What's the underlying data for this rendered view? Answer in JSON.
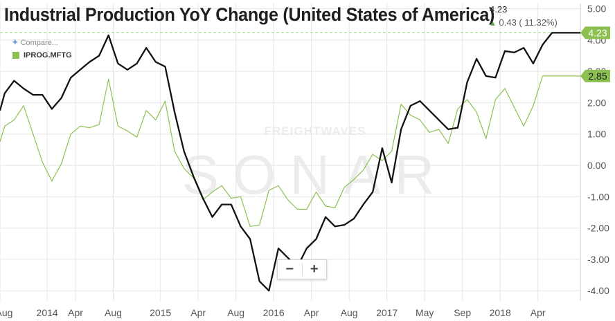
{
  "header": {
    "title": "Industrial Production YoY Change (United States of America)",
    "last_value": "4.23",
    "change": "0.43 ( 11.32%)"
  },
  "compare_label": "Compare...",
  "legend_label": "IPROG.MFTG",
  "watermark": {
    "brand": "FREIGHTWAVES",
    "product": "SONAR"
  },
  "colors": {
    "main_line": "#111111",
    "compare_line": "#8cc152",
    "grid": "#e6e6e6",
    "badge": "#8cc152"
  },
  "chart_data": {
    "type": "line",
    "y_range": [
      -4.25,
      5.2
    ],
    "y_ticks": [
      "5.00",
      "4.00",
      "3.00",
      "2.00",
      "1.00",
      "0.00",
      "-1.00",
      "-2.00",
      "-3.00",
      "-4.00"
    ],
    "x_ticks": [
      "Aug",
      "2014",
      "Apr",
      "Aug",
      "2015",
      "Apr",
      "Aug",
      "2016",
      "Apr",
      "Aug",
      "2017",
      "May",
      "Sep",
      "2018",
      "Apr"
    ],
    "x_range_months": [
      0,
      61.5
    ],
    "x_tick_months": [
      0,
      5,
      8,
      12,
      17,
      21,
      25,
      29,
      33,
      37,
      41,
      45,
      49,
      53,
      57
    ],
    "series": [
      {
        "x": [
          0,
          0.5,
          1.5,
          2.5,
          3.5,
          4.5,
          5.5,
          6.5,
          7.5,
          8.5,
          9.5,
          10.5,
          11.5,
          12.5,
          13.5,
          14.5,
          15.5,
          16.5,
          17.5,
          18.5,
          19.5,
          20.5,
          21.5,
          22.5,
          23.5,
          24.5,
          25.5,
          26.5,
          27.5,
          28.5,
          29.5,
          30.5,
          31.5,
          32.5,
          33.5,
          34.5,
          35.5,
          36.5,
          37.5,
          38.5,
          39.5,
          40.5,
          41.5,
          42.5,
          43.5,
          44.5,
          45.5,
          46.5,
          47.5,
          48.5,
          49.5,
          50.5,
          51.5,
          52.5,
          53.5,
          54.5,
          55.5,
          56.5,
          57.5,
          58.5,
          59.5,
          60.5,
          61.5
        ],
        "values": [
          1.75,
          2.3,
          2.7,
          2.45,
          2.25,
          2.25,
          1.8,
          2.15,
          2.8,
          3.05,
          3.3,
          3.5,
          4.15,
          3.25,
          3.05,
          3.25,
          3.75,
          3.3,
          3.15,
          1.7,
          0.45,
          -0.35,
          -1.05,
          -1.65,
          -1.25,
          -1.25,
          -1.95,
          -2.35,
          -3.7,
          -4.0,
          -2.65,
          -2.95,
          -3.25,
          -2.65,
          -2.35,
          -1.65,
          -1.95,
          -1.9,
          -1.7,
          -1.25,
          -0.85,
          0.55,
          -0.55,
          1.15,
          1.9,
          2.05,
          1.75,
          1.45,
          1.15,
          1.2,
          2.65,
          3.4,
          2.85,
          2.8,
          3.65,
          3.6,
          3.75,
          3.25,
          3.85,
          4.23,
          4.23,
          4.23,
          4.23
        ]
      },
      {
        "x": [
          0,
          0.5,
          1.5,
          2.5,
          3.5,
          4.5,
          5.5,
          6.5,
          7.5,
          8.5,
          9.5,
          10.5,
          11.5,
          12.5,
          13.5,
          14.5,
          15.5,
          16.5,
          17.5,
          18.5,
          19.5,
          20.5,
          21.5,
          22.5,
          23.5,
          24.5,
          25.5,
          26.5,
          27.5,
          28.5,
          29.5,
          30.5,
          31.5,
          32.5,
          33.5,
          34.5,
          35.5,
          36.5,
          37.5,
          38.5,
          39.5,
          40.5,
          41.5,
          42.5,
          43.5,
          44.5,
          45.5,
          46.5,
          47.5,
          48.5,
          49.5,
          50.5,
          51.5,
          52.5,
          53.5,
          54.5,
          55.5,
          56.5,
          57.5,
          58.5,
          59.5,
          60.5,
          61.5
        ],
        "values": [
          0.75,
          1.25,
          1.45,
          1.9,
          1.0,
          0.1,
          -0.5,
          0.05,
          1.0,
          1.25,
          1.2,
          1.3,
          2.75,
          1.25,
          1.1,
          0.9,
          1.75,
          1.45,
          2.05,
          0.45,
          -0.1,
          -0.4,
          -1.1,
          -0.85,
          -0.65,
          -1.05,
          -1.0,
          -1.95,
          -1.9,
          -0.8,
          -0.65,
          -1.1,
          -1.4,
          -1.4,
          -0.85,
          -1.3,
          -1.35,
          -0.7,
          -0.45,
          -0.15,
          0.35,
          0.15,
          0.45,
          1.95,
          1.6,
          1.45,
          1.05,
          1.15,
          0.7,
          1.8,
          2.1,
          1.7,
          0.85,
          2.1,
          2.45,
          1.85,
          1.25,
          1.9,
          2.85,
          2.85,
          2.85,
          2.85,
          2.85
        ]
      }
    ]
  }
}
